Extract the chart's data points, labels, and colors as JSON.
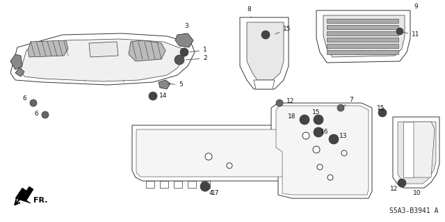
{
  "background_color": "#ffffff",
  "line_color": "#333333",
  "lw": 0.7,
  "diagram_code": "S5A3-B3941 A",
  "fr_text": "FR."
}
